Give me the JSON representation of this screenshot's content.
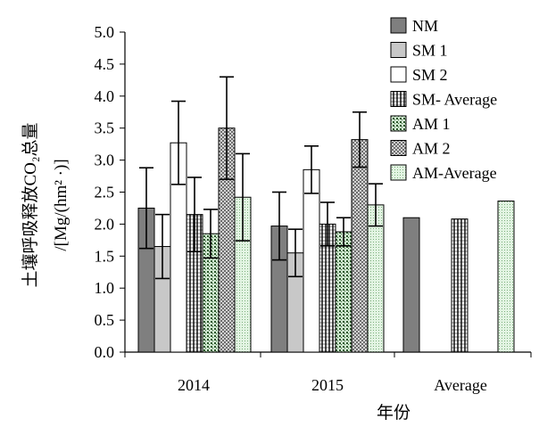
{
  "chart_data": {
    "type": "bar",
    "ylabel": "土壤呼吸释放CO₂总量",
    "ylabel_unit": "/[Mg/(hm² ·)]",
    "xlabel": "年份",
    "ylim": [
      0,
      5
    ],
    "yticks": [
      "0.0",
      "0.5",
      "1.0",
      "1.5",
      "2.0",
      "2.5",
      "3.0",
      "3.5",
      "4.0",
      "4.5",
      "5.0"
    ],
    "categories": [
      "2014",
      "2015",
      "Average"
    ],
    "legend_position": "right",
    "grid": false,
    "series": [
      {
        "name": "NM",
        "values": [
          2.25,
          1.97,
          2.1
        ],
        "errors": [
          0.63,
          0.53,
          null
        ],
        "color": "#7f7f7f",
        "pattern": "solid-dark"
      },
      {
        "name": "SM 1",
        "values": [
          1.65,
          1.55,
          null
        ],
        "errors": [
          0.5,
          0.37,
          null
        ],
        "color": "#c8c8c8",
        "pattern": "solid-light"
      },
      {
        "name": "SM 2",
        "values": [
          3.27,
          2.85,
          null
        ],
        "errors": [
          0.65,
          0.37,
          null
        ],
        "color": "#ffffff",
        "pattern": "white"
      },
      {
        "name": "SM- Average",
        "values": [
          2.15,
          2.0,
          2.08
        ],
        "errors": [
          0.58,
          0.34,
          null
        ],
        "color": "#ffffff",
        "pattern": "vertical-hatch"
      },
      {
        "name": "AM 1",
        "values": [
          1.85,
          1.88,
          null
        ],
        "errors": [
          0.38,
          0.22,
          null
        ],
        "color": "#cfe8cf",
        "pattern": "green-dots"
      },
      {
        "name": "AM 2",
        "values": [
          3.5,
          3.32,
          null
        ],
        "errors": [
          0.8,
          0.43,
          null
        ],
        "color": "#e8e8e8",
        "pattern": "cross-hatch"
      },
      {
        "name": "AM-Average",
        "values": [
          2.42,
          2.3,
          2.36
        ],
        "errors": [
          0.68,
          0.33,
          null
        ],
        "color": "#dff2df",
        "pattern": "green-fine"
      }
    ]
  }
}
